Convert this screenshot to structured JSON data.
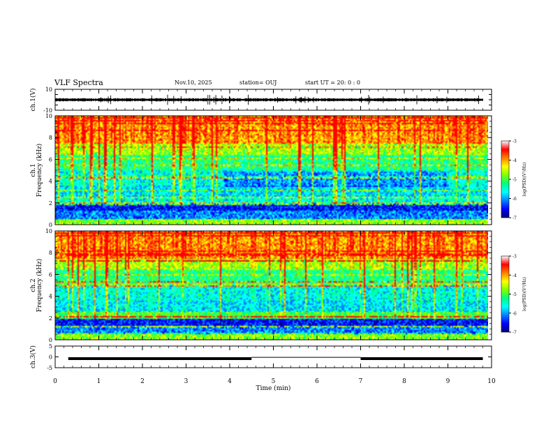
{
  "header": {
    "title": "VLF Spectra",
    "date": "Nov.10, 2025",
    "station": "station= OUJ",
    "start": "start  UT =   20: 0  : 0"
  },
  "chart_data": [
    {
      "type": "line",
      "id": "ch1-waveform",
      "ylabel": "ch.1(V)",
      "ylim": [
        -10,
        10
      ],
      "yticks": [
        "10",
        "-10"
      ],
      "x": [
        0,
        0.5,
        1,
        1.5,
        2,
        2.5,
        3,
        3.5,
        4,
        4.5,
        5,
        5.5,
        6,
        6.5,
        7,
        7.5,
        8,
        8.5,
        9,
        9.5,
        9.8
      ],
      "values": [
        0,
        0,
        0,
        0,
        0,
        0,
        0,
        0,
        0,
        0,
        0,
        0,
        0,
        0,
        0,
        0,
        0,
        0,
        0,
        0,
        0
      ],
      "envelope": [
        1.5,
        -1.5
      ]
    },
    {
      "type": "heatmap",
      "id": "ch1-spectrogram",
      "ylabel_top": "ch.1",
      "ylabel": "Frequency (kHz)",
      "ylim": [
        0,
        10
      ],
      "yticks": [
        "0",
        "2",
        "4",
        "6",
        "8",
        "10"
      ],
      "colorbar": {
        "label": "log(PSD)(V²/Hz)",
        "range": [
          -7,
          -3
        ],
        "ticks": [
          "-3",
          "-4",
          "-5",
          "-6",
          "-7"
        ]
      }
    },
    {
      "type": "heatmap",
      "id": "ch2-spectrogram",
      "ylabel_top": "ch.2",
      "ylabel": "Frequency (kHz)",
      "ylim": [
        0,
        10
      ],
      "yticks": [
        "0",
        "2",
        "4",
        "6",
        "8",
        "10"
      ],
      "colorbar": {
        "label": "log(PSD)(V²/Hz)",
        "range": [
          -7,
          -3
        ],
        "ticks": [
          "-3",
          "-4",
          "-5",
          "-6",
          "-7"
        ]
      }
    },
    {
      "type": "line",
      "id": "ch3-waveform",
      "ylabel": "ch.3(V)",
      "ylim": [
        -5,
        5
      ],
      "yticks": [
        "5",
        "0",
        "-5"
      ],
      "segments": [
        {
          "x": [
            0.3,
            4.5
          ],
          "y": -0.8
        },
        {
          "x": [
            4.5,
            7.0
          ],
          "y": -0.2
        },
        {
          "x": [
            7.0,
            9.8
          ],
          "y": -0.8
        }
      ]
    }
  ],
  "xaxis": {
    "label": "Time (min)",
    "range": [
      0,
      10
    ],
    "ticks": [
      "0",
      "1",
      "2",
      "3",
      "4",
      "5",
      "6",
      "7",
      "8",
      "9",
      "10"
    ]
  },
  "palette": [
    "#00007a",
    "#0000ff",
    "#0080ff",
    "#00ffff",
    "#00ff80",
    "#80ff00",
    "#ffff00",
    "#ff8000",
    "#ff0000"
  ]
}
